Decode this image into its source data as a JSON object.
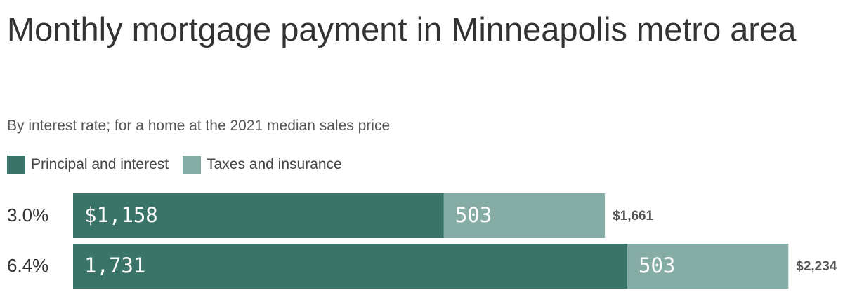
{
  "chart_data": {
    "type": "stacked-bar-horizontal",
    "title": "Monthly mortgage payment in Minneapolis metro area",
    "subtitle": "By interest rate; for a home at the 2021 median sales price",
    "categories": [
      "3.0%",
      "6.4%"
    ],
    "series": [
      {
        "name": "Principal and interest",
        "color": "#3a7468",
        "values": [
          1158,
          1731
        ],
        "value_labels": [
          "$1,158",
          "1,731"
        ]
      },
      {
        "name": "Taxes and insurance",
        "color": "#85ada6",
        "values": [
          503,
          503
        ]
      }
    ],
    "totals": {
      "values": [
        1661,
        2234
      ],
      "value_labels": [
        "$1,661",
        "$2,234"
      ]
    }
  }
}
